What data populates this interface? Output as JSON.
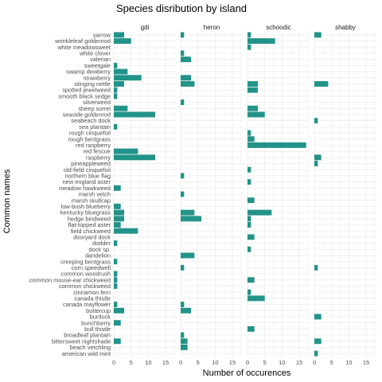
{
  "chart_data": {
    "type": "bar",
    "orientation": "horizontal",
    "facet_by": "island",
    "title": "Species disribution by island",
    "xlabel": "Number of occurences",
    "ylabel": "Common names",
    "xlim": [
      0,
      18
    ],
    "xticks": [
      0,
      5,
      10,
      15
    ],
    "grid": true,
    "bar_color": "#229388",
    "panels": [
      "gdi",
      "heron",
      "schoodic",
      "shabby"
    ],
    "categories": [
      "yarrow",
      "wrinkleleaf goldenrod",
      "white meadowsweet",
      "white clover",
      "valerian",
      "sweetgale",
      "swamp dewberry",
      "strawberry",
      "stinging nettle",
      "spotted jewelweed",
      "smooth black sedge",
      "silverweed",
      "sheep sorrel",
      "seaside goldenrod",
      "seabeach dock",
      "sea plantain",
      "rough cinquefoil",
      "rough bentgrass",
      "red raspberry",
      "red fescue",
      "raspberry",
      "pineappleweed",
      "old-field cinquefoil",
      "northern blue flag",
      "new england aster",
      "meadow hawkweed",
      "marsh vetch",
      "marsh skullcap",
      "low-bush blueberry",
      "kentucky bluegrass",
      "hedge bindweed",
      "flat-topped aster",
      "field chickweed",
      "dooryard dock",
      "dodder",
      "dock sp.",
      "dandelion",
      "creeping bentgrass",
      "corn speedwell",
      "common woodrush",
      "common mouse-ear chickweed",
      "common chickweed",
      "cinnamon fern",
      "canada thistle",
      "canada mayflower",
      "buttercup",
      "burdock",
      "bunchberry",
      "bull thistle",
      "broadleaf plantain",
      "bittersweet nightshade",
      "beach vetchling",
      "american wild mint"
    ],
    "series": [
      {
        "name": "gdi",
        "values": [
          3,
          5,
          0,
          0,
          0,
          1,
          4,
          8,
          3,
          1,
          1,
          0,
          4,
          12,
          0,
          1,
          0,
          0,
          0,
          7,
          12,
          0,
          0,
          0,
          0,
          2,
          0,
          0,
          2,
          3,
          3,
          2,
          7,
          0,
          1,
          0,
          0,
          1,
          0,
          1,
          1,
          1,
          0,
          0,
          1,
          3,
          0,
          2,
          0,
          0,
          2,
          0,
          0
        ]
      },
      {
        "name": "heron",
        "values": [
          1,
          0,
          0,
          1,
          3,
          0,
          0,
          3,
          4,
          0,
          0,
          1,
          0,
          0,
          0,
          0,
          0,
          0,
          0,
          0,
          0,
          0,
          0,
          1,
          0,
          0,
          1,
          0,
          0,
          4,
          6,
          0,
          0,
          0,
          0,
          0,
          4,
          0,
          1,
          0,
          0,
          0,
          0,
          0,
          1,
          3,
          0,
          0,
          0,
          1,
          2,
          2,
          0
        ]
      },
      {
        "name": "schoodic",
        "values": [
          1,
          8,
          1,
          0,
          0,
          0,
          0,
          0,
          3,
          3,
          0,
          0,
          3,
          5,
          0,
          0,
          1,
          2,
          17,
          0,
          0,
          0,
          1,
          0,
          1,
          0,
          0,
          2,
          0,
          7,
          1,
          1,
          0,
          2,
          0,
          1,
          0,
          0,
          0,
          0,
          2,
          0,
          1,
          5,
          0,
          0,
          0,
          0,
          2,
          0,
          0,
          0,
          0
        ]
      },
      {
        "name": "shabby",
        "values": [
          2,
          0,
          0,
          0,
          0,
          0,
          0,
          0,
          4,
          0,
          0,
          0,
          0,
          0,
          1,
          0,
          0,
          0,
          0,
          0,
          2,
          1,
          0,
          0,
          0,
          0,
          0,
          0,
          0,
          0,
          0,
          0,
          0,
          0,
          0,
          0,
          0,
          0,
          1,
          0,
          0,
          0,
          0,
          0,
          0,
          0,
          2,
          0,
          0,
          0,
          2,
          0,
          1
        ]
      }
    ]
  }
}
